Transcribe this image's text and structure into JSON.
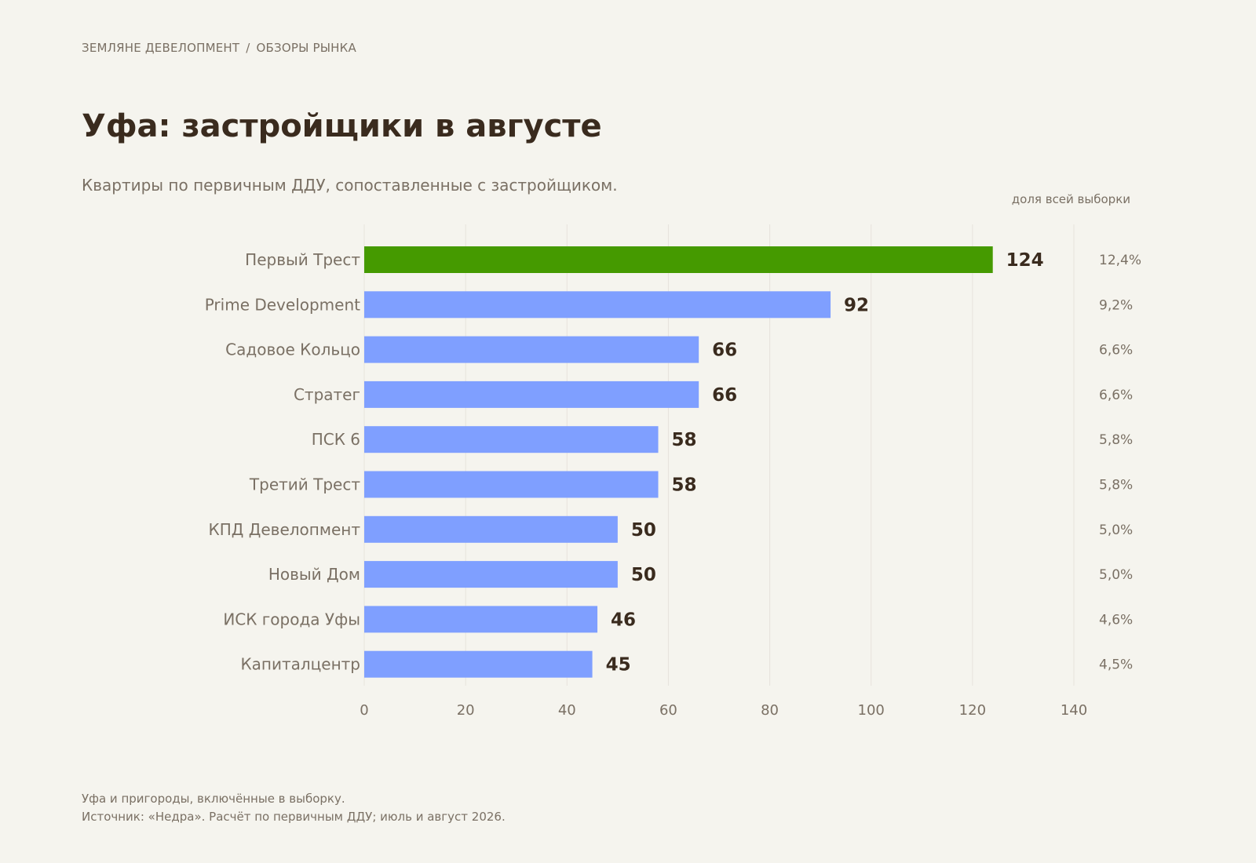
{
  "header": {
    "breadcrumb_brand": "ЗЕМЛЯНЕ ДЕВЕЛОПМЕНТ",
    "breadcrumb_separator": "/",
    "breadcrumb_section": "ОБЗОРЫ РЫНКА"
  },
  "chart_data": {
    "type": "bar",
    "orientation": "horizontal",
    "title": "Уфа: застройщики в августе",
    "subtitle": "Квартиры по первичным ДДУ, сопоставленные с застройщиком.",
    "share_column_label": "доля всей выборки",
    "categories": [
      "Первый Трест",
      "Prime Development",
      "Садовое Кольцо",
      "Стратег",
      "ПСК 6",
      "Третий Трест",
      "КПД Девелопмент",
      "Новый Дом",
      "ИСК города Уфы",
      "Капиталцентр"
    ],
    "values": [
      124,
      92,
      66,
      66,
      58,
      58,
      50,
      50,
      46,
      45
    ],
    "shares": [
      "12,4%",
      "9,2%",
      "6,6%",
      "6,6%",
      "5,8%",
      "5,8%",
      "5,0%",
      "5,0%",
      "4,6%",
      "4,5%"
    ],
    "highlight_index": 0,
    "xlim": [
      0,
      140
    ],
    "x_ticks": [
      0,
      20,
      40,
      60,
      80,
      100,
      120,
      140
    ],
    "grid": "vertical",
    "colors": {
      "highlight": "#459a00",
      "bar": "#7f9fff",
      "grid": "#e6e3dc",
      "axis_text": "#7a7064",
      "value_text": "#3a2b1e"
    }
  },
  "footer": {
    "note": "Уфа и пригороды, включённые в выборку.",
    "source": "Источник: «Недра». Расчёт по первичным ДДУ; июль и август 2026."
  }
}
